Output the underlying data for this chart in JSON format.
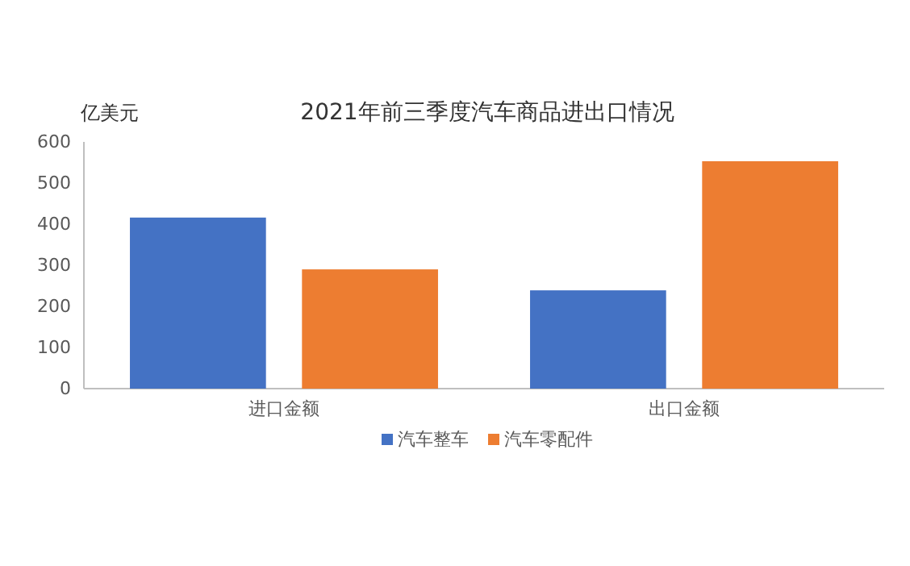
{
  "chart_data": {
    "type": "bar",
    "title": "2021年前三季度汽车商品进出口情况",
    "ylabel": "亿美元",
    "categories": [
      "进口金额",
      "出口金额"
    ],
    "series": [
      {
        "name": "汽车整车",
        "color": "#4472c4",
        "values": [
          416,
          239
        ]
      },
      {
        "name": "汽车零配件",
        "color": "#ed7d31",
        "values": [
          290,
          553
        ]
      }
    ],
    "ylim": [
      0,
      600
    ],
    "yticks": [
      0,
      100,
      200,
      300,
      400,
      500,
      600
    ],
    "grid": false,
    "legend": "bottom"
  }
}
